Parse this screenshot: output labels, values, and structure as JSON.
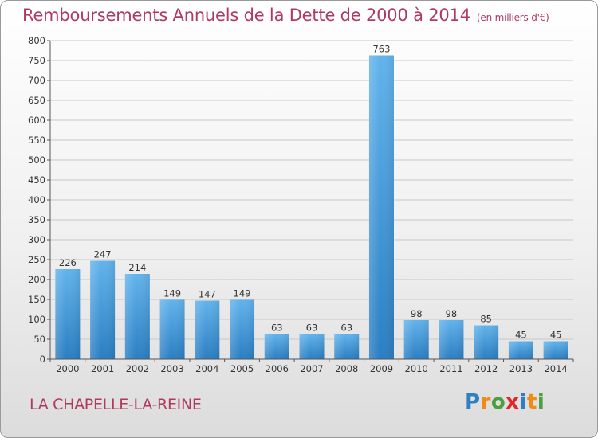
{
  "title": "Remboursements Annuels de la Dette de 2000 à 2014",
  "unit_note": "(en milliers d'€)",
  "commune": "LA CHAPELLE-LA-REINE",
  "logo": {
    "text": "Proxiti",
    "colors": [
      "#2f7fc1",
      "#f28a1a",
      "#4aa03f",
      "#e0262a",
      "#2f7fc1",
      "#f28a1a",
      "#4aa03f"
    ]
  },
  "colors": {
    "title": "#b03a5e",
    "bar_top": "#62b3ec",
    "bar_bottom": "#2a7ec2",
    "grid": "#c8c8c8",
    "axis": "#555555",
    "tick_text": "#333333"
  },
  "chart_data": {
    "type": "bar",
    "title": "Remboursements Annuels de la Dette de 2000 à 2014",
    "subtitle": "(en milliers d'€)",
    "categories": [
      "2000",
      "2001",
      "2002",
      "2003",
      "2004",
      "2005",
      "2006",
      "2007",
      "2008",
      "2009",
      "2010",
      "2011",
      "2012",
      "2013",
      "2014"
    ],
    "values": [
      226,
      247,
      214,
      149,
      147,
      149,
      63,
      63,
      63,
      763,
      98,
      98,
      85,
      45,
      45
    ],
    "ylim": [
      0,
      800
    ],
    "yticks": [
      0,
      50,
      100,
      150,
      200,
      250,
      300,
      350,
      400,
      450,
      500,
      550,
      600,
      650,
      700,
      750,
      800
    ],
    "grid": true,
    "data_labels": true
  }
}
